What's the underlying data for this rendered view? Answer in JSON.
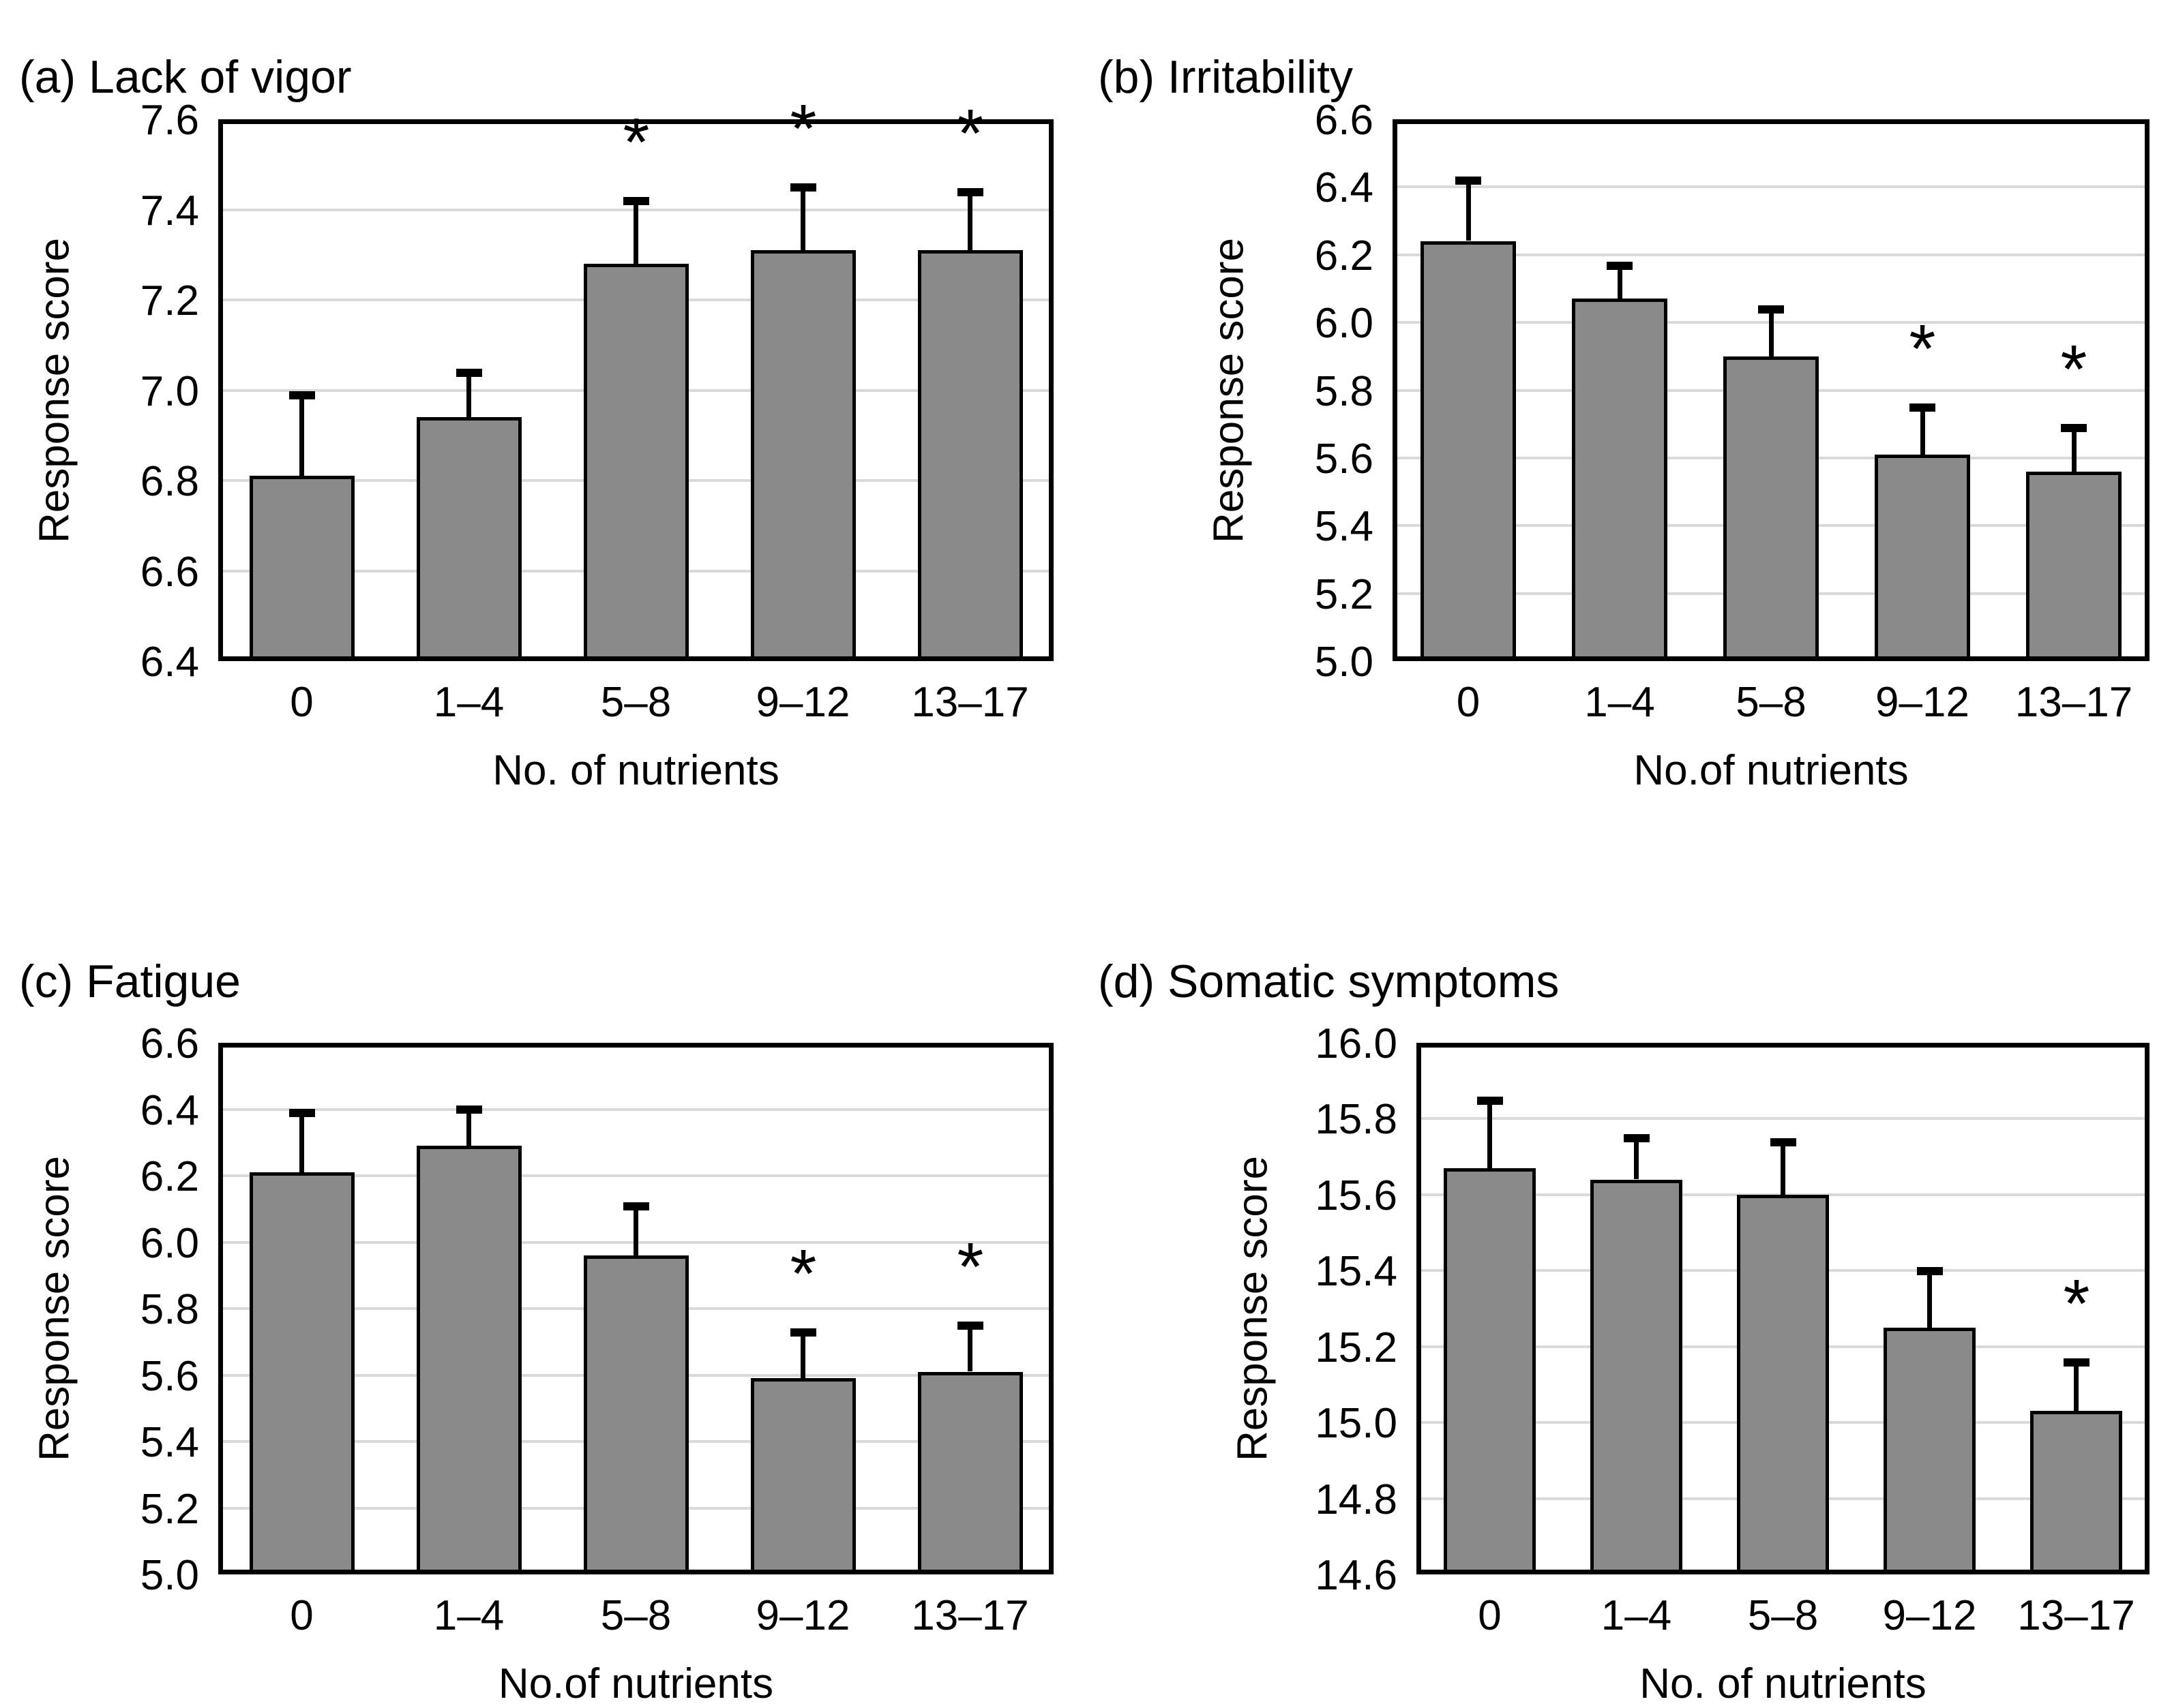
{
  "style": {
    "bar_fill": "#8a8a8a",
    "bar_border": "#000000",
    "gridline_color": "#d9d9d9",
    "frame_color": "#000000",
    "sig_marker": "*"
  },
  "chart_data": [
    {
      "type": "bar",
      "panel": "a",
      "title": "(a) Lack of vigor",
      "ylabel": "Response score",
      "xlabel": "No. of nutrients",
      "categories": [
        "0",
        "1–4",
        "5–8",
        "9–12",
        "13–17"
      ],
      "values": [
        6.81,
        6.94,
        7.28,
        7.31,
        7.31
      ],
      "errors": [
        0.18,
        0.1,
        0.14,
        0.14,
        0.13
      ],
      "significant": [
        false,
        false,
        true,
        true,
        true
      ],
      "ylim": [
        6.4,
        7.6
      ],
      "ytick_step": 0.2,
      "grid": true,
      "legend": "none"
    },
    {
      "type": "bar",
      "panel": "b",
      "title": "(b) Irritability",
      "ylabel": "Response score",
      "xlabel": "No.of nutrients",
      "categories": [
        "0",
        "1–4",
        "5–8",
        "9–12",
        "13–17"
      ],
      "values": [
        6.24,
        6.07,
        5.9,
        5.61,
        5.56
      ],
      "errors": [
        0.18,
        0.1,
        0.14,
        0.14,
        0.13
      ],
      "significant": [
        false,
        false,
        false,
        true,
        true
      ],
      "ylim": [
        5.0,
        6.6
      ],
      "ytick_step": 0.2,
      "grid": true,
      "legend": "none"
    },
    {
      "type": "bar",
      "panel": "c",
      "title": "(c) Fatigue",
      "ylabel": "Response score",
      "xlabel": "No.of nutrients",
      "categories": [
        "0",
        "1–4",
        "5–8",
        "9–12",
        "13–17"
      ],
      "values": [
        6.21,
        6.29,
        5.96,
        5.59,
        5.61
      ],
      "errors": [
        0.18,
        0.11,
        0.15,
        0.14,
        0.14
      ],
      "significant": [
        false,
        false,
        false,
        true,
        true
      ],
      "ylim": [
        5.0,
        6.6
      ],
      "ytick_step": 0.2,
      "grid": true,
      "legend": "none"
    },
    {
      "type": "bar",
      "panel": "d",
      "title": "(d) Somatic symptoms",
      "ylabel": "Response score",
      "xlabel": "No. of nutrients",
      "categories": [
        "0",
        "1–4",
        "5–8",
        "9–12",
        "13–17"
      ],
      "values": [
        15.67,
        15.64,
        15.6,
        15.25,
        15.03
      ],
      "errors": [
        0.18,
        0.11,
        0.14,
        0.15,
        0.13
      ],
      "significant": [
        false,
        false,
        false,
        false,
        true
      ],
      "ylim": [
        14.6,
        16.0
      ],
      "ytick_step": 0.2,
      "grid": true,
      "legend": "none"
    }
  ]
}
